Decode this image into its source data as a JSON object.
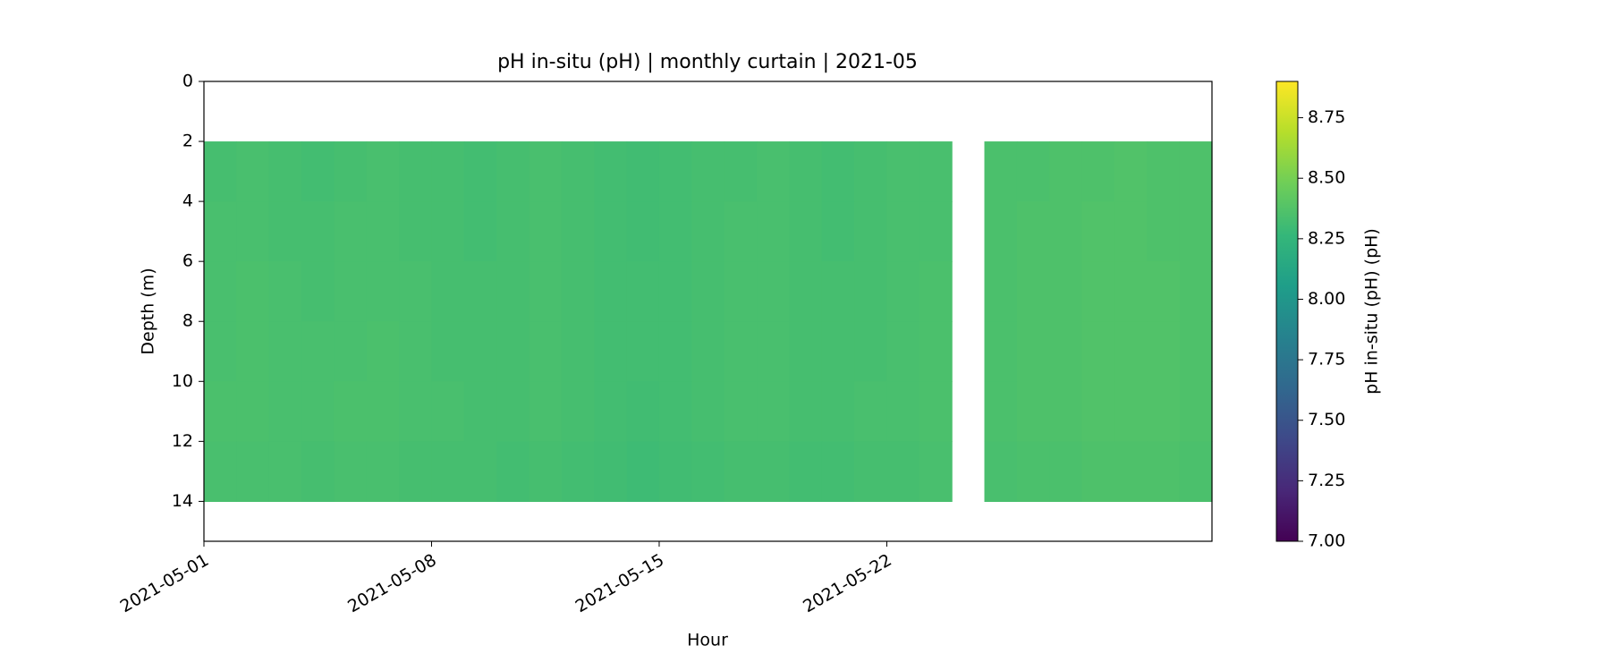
{
  "chart_data": {
    "type": "heatmap",
    "title": "pH in-situ (pH) | monthly curtain | 2021-05",
    "x_label": "Hour",
    "y_label": "Depth (m)",
    "colorbar_label": "pH in-situ (pH) (pH)",
    "colormap": "viridis",
    "x": [
      "2021-05-01",
      "2021-05-02",
      "2021-05-03",
      "2021-05-04",
      "2021-05-05",
      "2021-05-06",
      "2021-05-07",
      "2021-05-08",
      "2021-05-09",
      "2021-05-10",
      "2021-05-11",
      "2021-05-12",
      "2021-05-13",
      "2021-05-14",
      "2021-05-15",
      "2021-05-16",
      "2021-05-17",
      "2021-05-18",
      "2021-05-19",
      "2021-05-20",
      "2021-05-21",
      "2021-05-22",
      "2021-05-23",
      "2021-05-24",
      "2021-05-25",
      "2021-05-26",
      "2021-05-27",
      "2021-05-28",
      "2021-05-29",
      "2021-05-30",
      "2021-05-31"
    ],
    "depth_bins": [
      2,
      4,
      6,
      8,
      10,
      12,
      14
    ],
    "values": [
      [
        8.33,
        8.34,
        8.33,
        8.32,
        8.33,
        8.34,
        8.33,
        8.33,
        8.32,
        8.33,
        8.34,
        8.33,
        8.32,
        8.31,
        8.32,
        8.33,
        8.33,
        8.34,
        8.33,
        8.32,
        8.33,
        8.34,
        8.34,
        null,
        8.35,
        8.35,
        8.36,
        8.36,
        8.37,
        8.36,
        8.36
      ],
      [
        8.34,
        8.34,
        8.33,
        8.33,
        8.34,
        8.34,
        8.33,
        8.33,
        8.32,
        8.33,
        8.34,
        8.33,
        8.32,
        8.31,
        8.32,
        8.33,
        8.34,
        8.34,
        8.33,
        8.32,
        8.33,
        8.34,
        8.34,
        null,
        8.35,
        8.36,
        8.36,
        8.37,
        8.37,
        8.36,
        8.36
      ],
      [
        8.34,
        8.35,
        8.34,
        8.33,
        8.34,
        8.34,
        8.34,
        8.33,
        8.33,
        8.33,
        8.34,
        8.33,
        8.32,
        8.32,
        8.32,
        8.33,
        8.34,
        8.34,
        8.33,
        8.33,
        8.33,
        8.34,
        8.35,
        null,
        8.35,
        8.36,
        8.36,
        8.37,
        8.37,
        8.37,
        8.36
      ],
      [
        8.34,
        8.35,
        8.34,
        8.34,
        8.34,
        8.35,
        8.34,
        8.33,
        8.33,
        8.33,
        8.34,
        8.33,
        8.32,
        8.32,
        8.32,
        8.33,
        8.34,
        8.34,
        8.33,
        8.33,
        8.33,
        8.34,
        8.35,
        null,
        8.35,
        8.36,
        8.36,
        8.37,
        8.37,
        8.37,
        8.36
      ],
      [
        8.35,
        8.35,
        8.34,
        8.34,
        8.35,
        8.35,
        8.34,
        8.34,
        8.33,
        8.33,
        8.34,
        8.33,
        8.32,
        8.31,
        8.32,
        8.33,
        8.34,
        8.34,
        8.33,
        8.33,
        8.34,
        8.34,
        8.35,
        null,
        8.35,
        8.36,
        8.36,
        8.37,
        8.37,
        8.37,
        8.36
      ],
      [
        8.34,
        8.34,
        8.34,
        8.33,
        8.34,
        8.34,
        8.33,
        8.33,
        8.33,
        8.32,
        8.33,
        8.32,
        8.31,
        8.3,
        8.31,
        8.32,
        8.33,
        8.33,
        8.32,
        8.32,
        8.33,
        8.33,
        8.34,
        null,
        8.34,
        8.35,
        8.35,
        8.36,
        8.36,
        8.36,
        8.35
      ]
    ],
    "xlim": [
      "2021-05-01",
      "2021-06-01"
    ],
    "xticks": [
      "2021-05-01",
      "2021-05-08",
      "2021-05-15",
      "2021-05-22"
    ],
    "ylim": [
      15.33,
      0
    ],
    "yticks": [
      0,
      2,
      4,
      6,
      8,
      10,
      12,
      14
    ],
    "clim": [
      7.0,
      8.9
    ],
    "cticks": [
      {
        "value": 7,
        "label": "7.00"
      },
      {
        "value": 7.25,
        "label": "7.25"
      },
      {
        "value": 7.5,
        "label": "7.50"
      },
      {
        "value": 7.75,
        "label": "7.75"
      },
      {
        "value": 8,
        "label": "8.00"
      },
      {
        "value": 8.25,
        "label": "8.25"
      },
      {
        "value": 8.5,
        "label": "8.50"
      },
      {
        "value": 8.75,
        "label": "8.75"
      }
    ]
  }
}
